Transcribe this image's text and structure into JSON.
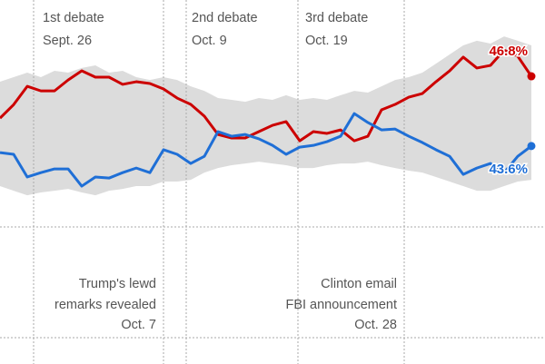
{
  "chart_data": {
    "type": "line",
    "ylim": [
      33.6,
      50.3
    ],
    "band": {
      "color": "#dcdcdc",
      "upper": [
        46.55,
        46.76,
        46.97,
        46.76,
        47.05,
        46.97,
        47.18,
        47.3,
        46.97,
        47.05,
        46.76,
        46.63,
        46.76,
        46.63,
        46.34,
        46.13,
        45.8,
        45.72,
        45.63,
        45.8,
        45.72,
        45.93,
        45.72,
        45.8,
        45.72,
        45.93,
        46.13,
        46.05,
        46.34,
        46.63,
        46.76,
        46.97,
        47.38,
        47.8,
        48.22,
        48.43,
        48.3,
        48.63,
        48.43,
        48.22
      ],
      "lower": [
        41.76,
        41.55,
        41.34,
        41.47,
        41.55,
        41.63,
        41.47,
        41.34,
        41.55,
        41.63,
        41.76,
        41.76,
        41.97,
        41.97,
        42.05,
        42.38,
        42.59,
        42.72,
        42.8,
        42.88,
        42.8,
        42.72,
        42.59,
        42.59,
        42.72,
        42.8,
        42.8,
        42.88,
        42.72,
        42.59,
        42.47,
        42.38,
        42.18,
        41.97,
        41.76,
        41.55,
        41.55,
        41.76,
        41.97,
        42.05
      ]
    },
    "series": [
      {
        "color": "#cc0000",
        "values": [
          44.88,
          45.5,
          46.34,
          46.13,
          46.13,
          46.63,
          47.05,
          46.76,
          46.76,
          46.43,
          46.55,
          46.47,
          46.22,
          45.8,
          45.51,
          44.97,
          44.13,
          43.97,
          43.97,
          44.26,
          44.55,
          44.72,
          43.84,
          44.26,
          44.18,
          44.34,
          43.84,
          44.05,
          45.26,
          45.51,
          45.84,
          46.01,
          46.55,
          47.05,
          47.68,
          47.18,
          47.3,
          48.0,
          47.72,
          46.8
        ],
        "value_labels": [
          null,
          null,
          null,
          null,
          null,
          null,
          null,
          null,
          null,
          null,
          null,
          null,
          null,
          null,
          null,
          null,
          null,
          null,
          null,
          null,
          null,
          null,
          null,
          null,
          null,
          null,
          null,
          null,
          null,
          null,
          null,
          null,
          null,
          null,
          null,
          null,
          null,
          null,
          null,
          "46.8%"
        ]
      },
      {
        "color": "#1f6fd6",
        "values": [
          43.3,
          43.22,
          42.18,
          42.38,
          42.55,
          42.55,
          41.76,
          42.18,
          42.13,
          42.38,
          42.59,
          42.38,
          43.43,
          43.22,
          42.8,
          43.13,
          44.26,
          44.05,
          44.13,
          43.93,
          43.63,
          43.22,
          43.55,
          43.63,
          43.8,
          44.05,
          45.09,
          44.68,
          44.34,
          44.38,
          44.05,
          43.76,
          43.43,
          43.13,
          42.3,
          42.59,
          42.8,
          42.38,
          43.13,
          43.6
        ],
        "value_labels": [
          null,
          null,
          null,
          null,
          null,
          null,
          null,
          null,
          null,
          null,
          null,
          null,
          null,
          null,
          null,
          null,
          null,
          null,
          null,
          null,
          null,
          null,
          null,
          null,
          null,
          null,
          null,
          null,
          null,
          null,
          null,
          null,
          null,
          null,
          null,
          null,
          null,
          null,
          null,
          "43.6%"
        ]
      }
    ],
    "annotations": [
      {
        "lines": [
          "1st debate",
          "Sept. 26"
        ]
      },
      {
        "lines": [
          "2nd debate",
          "Oct. 9"
        ]
      },
      {
        "lines": [
          "3rd debate",
          "Oct. 19"
        ]
      },
      {
        "lines": [
          "Trump's lewd",
          "remarks revealed",
          "Oct. 7"
        ]
      },
      {
        "lines": [
          "Clinton email",
          "FBI announcement",
          "Oct. 28"
        ]
      }
    ]
  }
}
